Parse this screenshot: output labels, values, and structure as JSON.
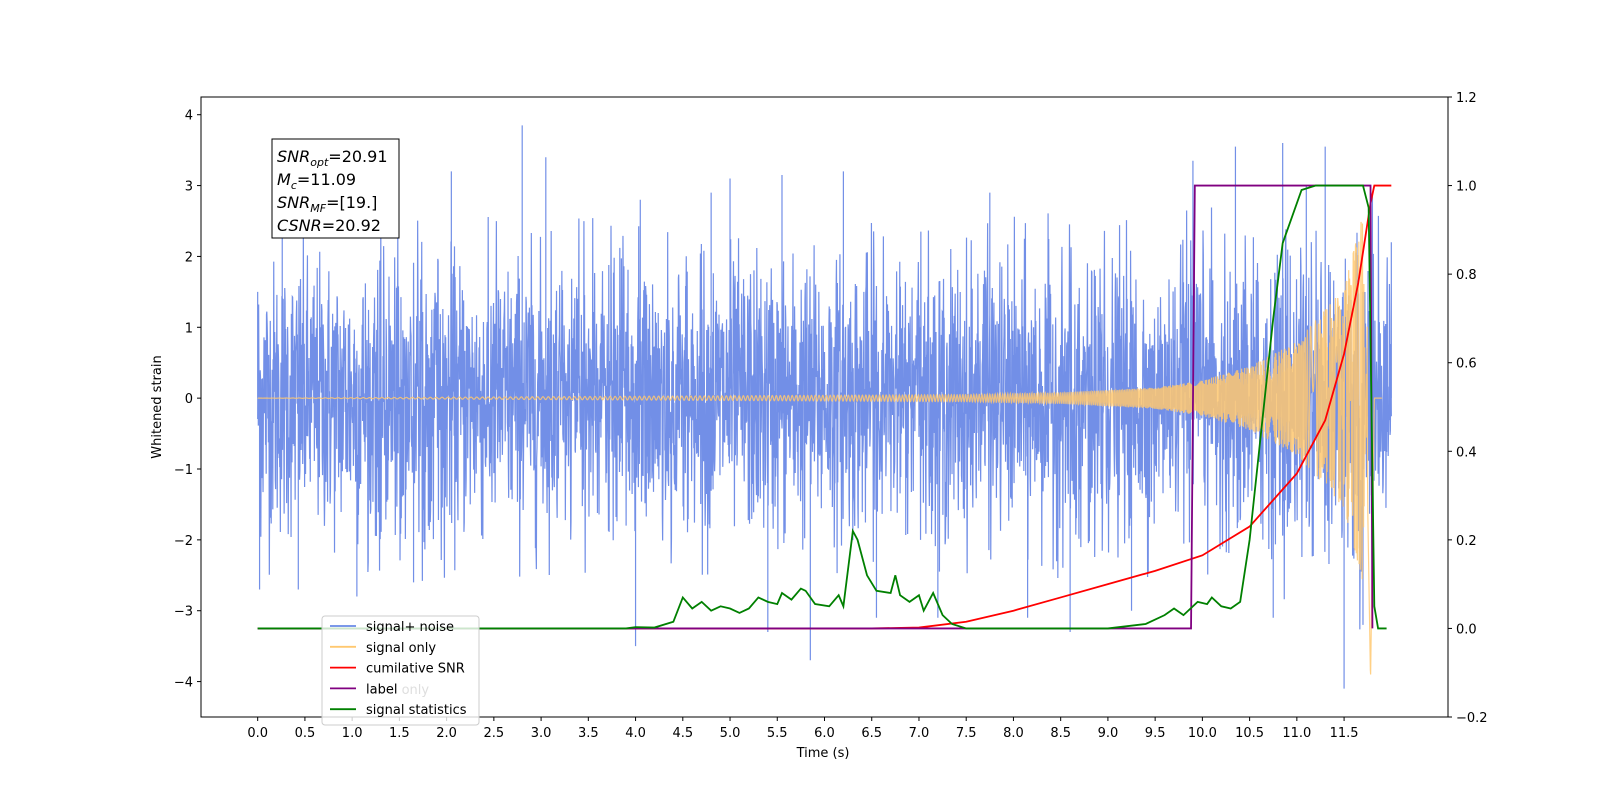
{
  "chart_data": {
    "type": "line",
    "title": "",
    "xlabel": "Time (s)",
    "ylabel": "Whitened strain",
    "y2label": "",
    "xlim": [
      -0.6,
      12.6
    ],
    "ylim": [
      -4.5,
      4.25
    ],
    "y2lim": [
      -0.2,
      1.2
    ],
    "x_ticks": [
      0.0,
      0.5,
      1.0,
      1.5,
      2.0,
      2.5,
      3.0,
      3.5,
      4.0,
      4.5,
      5.0,
      5.5,
      6.0,
      6.5,
      7.0,
      7.5,
      8.0,
      8.5,
      9.0,
      9.5,
      10.0,
      10.5,
      11.0,
      11.5
    ],
    "x_tick_labels": [
      "0.0",
      "0.5",
      "1.0",
      "1.5",
      "2.0",
      "2.5",
      "3.0",
      "3.5",
      "4.0",
      "4.5",
      "5.0",
      "5.5",
      "6.0",
      "6.5",
      "7.0",
      "7.5",
      "8.0",
      "8.5",
      "9.0",
      "9.5",
      "10.0",
      "10.5",
      "11.0",
      "11.5"
    ],
    "y_ticks": [
      4,
      3,
      2,
      1,
      0,
      -1,
      -2,
      -3,
      -4
    ],
    "y_tick_labels": [
      "4",
      "3",
      "2",
      "1",
      "0",
      "−1",
      "−2",
      "−3",
      "−4"
    ],
    "y2_ticks": [
      1.2,
      1.0,
      0.8,
      0.6,
      0.4,
      0.2,
      0.0,
      -0.2
    ],
    "y2_tick_labels": [
      "1.2",
      "1.0",
      "0.8",
      "0.6",
      "0.4",
      "0.2",
      "0.0",
      "−0.2"
    ],
    "grid": false,
    "legend_position": "lower-left",
    "series": [
      {
        "name": "signal+ noise",
        "axis": "left",
        "color": "#6a89e6",
        "kind": "noise_plus_chirp",
        "x_range": [
          0.0,
          12.0
        ],
        "noise_envelope": 2.6,
        "points": [
          [
            0.0,
            1.5
          ],
          [
            0.02,
            -2.7
          ],
          [
            0.26,
            2.7
          ],
          [
            0.43,
            -2.7
          ],
          [
            1.05,
            -2.8
          ],
          [
            1.65,
            -2.6
          ],
          [
            2.05,
            3.2
          ],
          [
            2.8,
            3.85
          ],
          [
            3.05,
            3.4
          ],
          [
            4.0,
            -3.5
          ],
          [
            4.05,
            2.8
          ],
          [
            4.8,
            2.9
          ],
          [
            5.0,
            3.1
          ],
          [
            5.4,
            -3.3
          ],
          [
            5.55,
            3.15
          ],
          [
            5.85,
            -3.7
          ],
          [
            6.2,
            3.2
          ],
          [
            6.55,
            -3.1
          ],
          [
            7.2,
            -3.1
          ],
          [
            7.75,
            2.9
          ],
          [
            8.15,
            -3.1
          ],
          [
            8.6,
            -3.3
          ],
          [
            9.25,
            -3.0
          ],
          [
            9.9,
            3.35
          ],
          [
            10.35,
            3.55
          ],
          [
            10.75,
            -3.1
          ],
          [
            10.85,
            3.6
          ],
          [
            11.1,
            3.0
          ],
          [
            11.3,
            3.55
          ],
          [
            11.5,
            -4.1
          ],
          [
            11.7,
            -3.2
          ],
          [
            11.8,
            2.9
          ],
          [
            12.0,
            2.2
          ]
        ]
      },
      {
        "name": "signal only",
        "axis": "left",
        "color": "#ffc870",
        "kind": "chirp",
        "x_range": [
          0.0,
          11.9
        ],
        "merger_time": 11.78,
        "envelope_points": [
          [
            0.0,
            0.0
          ],
          [
            7.5,
            0.05
          ],
          [
            8.5,
            0.08
          ],
          [
            9.5,
            0.15
          ],
          [
            10.0,
            0.25
          ],
          [
            10.5,
            0.45
          ],
          [
            11.0,
            0.8
          ],
          [
            11.5,
            1.55
          ],
          [
            11.7,
            2.6
          ],
          [
            11.78,
            -4.0
          ],
          [
            11.82,
            0.0
          ],
          [
            12.0,
            0.0
          ]
        ]
      },
      {
        "name": "cumilative SNR",
        "axis": "right",
        "color": "#ff0000",
        "points": [
          [
            0.0,
            0.0
          ],
          [
            6.5,
            0.0
          ],
          [
            7.0,
            0.002
          ],
          [
            7.5,
            0.015
          ],
          [
            8.0,
            0.04
          ],
          [
            8.5,
            0.07
          ],
          [
            9.0,
            0.1
          ],
          [
            9.5,
            0.13
          ],
          [
            10.0,
            0.165
          ],
          [
            10.5,
            0.23
          ],
          [
            11.0,
            0.35
          ],
          [
            11.3,
            0.47
          ],
          [
            11.5,
            0.62
          ],
          [
            11.65,
            0.78
          ],
          [
            11.78,
            0.96
          ],
          [
            11.82,
            1.0
          ],
          [
            12.0,
            1.0
          ]
        ]
      },
      {
        "name": "label",
        "axis": "right",
        "color": "#800080",
        "points": [
          [
            0.0,
            0.0
          ],
          [
            9.88,
            0.0
          ],
          [
            9.92,
            1.0
          ],
          [
            11.78,
            1.0
          ],
          [
            11.8,
            0.0
          ]
        ]
      },
      {
        "name": "signal statistics",
        "axis": "right",
        "color": "#008000",
        "points": [
          [
            0.0,
            0.0
          ],
          [
            3.9,
            0.0
          ],
          [
            4.0,
            0.003
          ],
          [
            4.2,
            0.002
          ],
          [
            4.4,
            0.015
          ],
          [
            4.5,
            0.07
          ],
          [
            4.6,
            0.045
          ],
          [
            4.7,
            0.06
          ],
          [
            4.8,
            0.04
          ],
          [
            4.9,
            0.05
          ],
          [
            5.0,
            0.045
          ],
          [
            5.1,
            0.035
          ],
          [
            5.2,
            0.045
          ],
          [
            5.3,
            0.07
          ],
          [
            5.4,
            0.06
          ],
          [
            5.5,
            0.055
          ],
          [
            5.55,
            0.08
          ],
          [
            5.65,
            0.065
          ],
          [
            5.75,
            0.09
          ],
          [
            5.8,
            0.085
          ],
          [
            5.9,
            0.055
          ],
          [
            6.05,
            0.05
          ],
          [
            6.15,
            0.075
          ],
          [
            6.2,
            0.05
          ],
          [
            6.3,
            0.22
          ],
          [
            6.35,
            0.2
          ],
          [
            6.45,
            0.12
          ],
          [
            6.55,
            0.085
          ],
          [
            6.7,
            0.08
          ],
          [
            6.75,
            0.12
          ],
          [
            6.8,
            0.075
          ],
          [
            6.9,
            0.06
          ],
          [
            7.0,
            0.075
          ],
          [
            7.05,
            0.04
          ],
          [
            7.15,
            0.08
          ],
          [
            7.25,
            0.03
          ],
          [
            7.35,
            0.01
          ],
          [
            7.5,
            0.0
          ],
          [
            8.0,
            0.0
          ],
          [
            9.0,
            0.0
          ],
          [
            9.4,
            0.01
          ],
          [
            9.6,
            0.03
          ],
          [
            9.7,
            0.045
          ],
          [
            9.8,
            0.03
          ],
          [
            9.95,
            0.06
          ],
          [
            10.05,
            0.055
          ],
          [
            10.1,
            0.07
          ],
          [
            10.2,
            0.05
          ],
          [
            10.3,
            0.045
          ],
          [
            10.4,
            0.06
          ],
          [
            10.5,
            0.2
          ],
          [
            10.65,
            0.5
          ],
          [
            10.75,
            0.7
          ],
          [
            10.85,
            0.87
          ],
          [
            10.95,
            0.93
          ],
          [
            11.05,
            0.99
          ],
          [
            11.2,
            1.0
          ],
          [
            11.7,
            1.0
          ],
          [
            11.76,
            0.95
          ],
          [
            11.82,
            0.05
          ],
          [
            11.86,
            0.0
          ],
          [
            11.95,
            0.0
          ]
        ]
      }
    ],
    "annotation": {
      "lines": [
        {
          "main": "SNR",
          "sub": "opt",
          "value": "=20.91"
        },
        {
          "main": "M",
          "sub": "c",
          "value": "=11.09"
        },
        {
          "main": "SNR",
          "sub": "MF",
          "value": "=[19.]"
        },
        {
          "main": "CSNR",
          "sub": "",
          "value": "=20.92"
        }
      ]
    },
    "legend_overlay_text": "label only"
  }
}
